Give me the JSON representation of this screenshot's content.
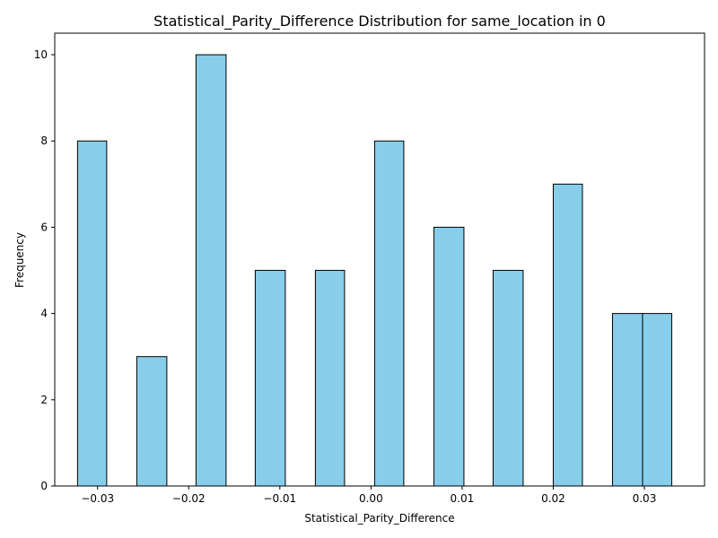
{
  "chart_data": {
    "type": "bar",
    "title": "Statistical_Parity_Difference Distribution for same_location in 0",
    "xlabel": "Statistical_Parity_Difference",
    "ylabel": "Frequency",
    "xlim": [
      -0.0347,
      0.0366
    ],
    "ylim": [
      0,
      10.5
    ],
    "xticks": [
      -0.03,
      -0.02,
      -0.01,
      0.0,
      0.01,
      0.02,
      0.03
    ],
    "xtick_labels": [
      "−0.03",
      "−0.02",
      "−0.01",
      "0.00",
      "0.01",
      "0.02",
      "0.03"
    ],
    "yticks": [
      0,
      2,
      4,
      6,
      8,
      10
    ],
    "ytick_labels": [
      "0",
      "2",
      "4",
      "6",
      "8",
      "10"
    ],
    "bins": [
      {
        "x0": -0.0322,
        "x1": -0.029,
        "count": 8
      },
      {
        "x0": -0.0257,
        "x1": -0.0224,
        "count": 3
      },
      {
        "x0": -0.0192,
        "x1": -0.0159,
        "count": 10
      },
      {
        "x0": -0.0127,
        "x1": -0.0094,
        "count": 5
      },
      {
        "x0": -0.0061,
        "x1": -0.0029,
        "count": 5
      },
      {
        "x0": 0.0004,
        "x1": 0.0036,
        "count": 8
      },
      {
        "x0": 0.0069,
        "x1": 0.0102,
        "count": 6
      },
      {
        "x0": 0.0134,
        "x1": 0.0167,
        "count": 5
      },
      {
        "x0": 0.02,
        "x1": 0.0232,
        "count": 7
      },
      {
        "x0": 0.0265,
        "x1": 0.0298,
        "count": 4
      },
      {
        "x0": 0.0298,
        "x1": 0.033,
        "count": 4
      }
    ],
    "bar_color": "#87ceeb",
    "edge_color": "#000000",
    "grid": false,
    "legend": "none"
  }
}
